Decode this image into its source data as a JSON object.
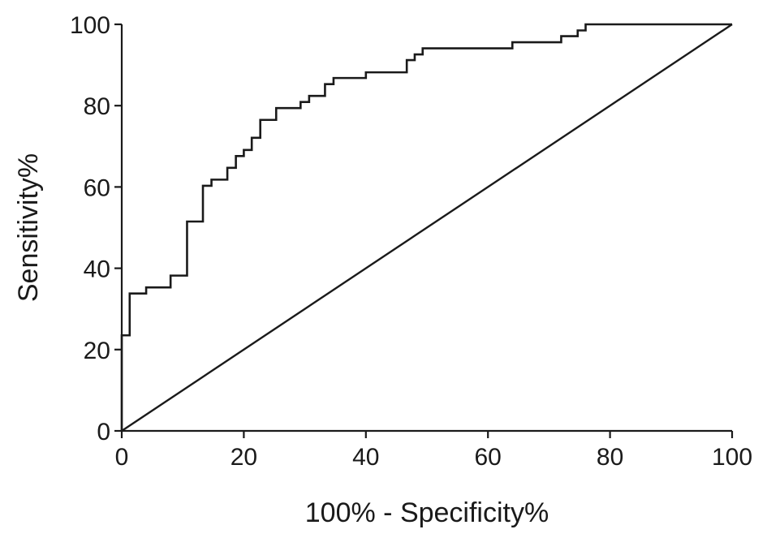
{
  "chart_data": {
    "type": "line",
    "title": "",
    "xlabel": "100% - Specificity%",
    "ylabel": "Sensitivity%",
    "xlim": [
      0,
      100
    ],
    "ylim": [
      0,
      100
    ],
    "xticks": [
      0,
      20,
      40,
      60,
      80,
      100
    ],
    "yticks": [
      0,
      20,
      40,
      60,
      80,
      100
    ],
    "grid": false,
    "legend": "none",
    "series": [
      {
        "kind": "roc-step",
        "color": "#1a1a1a",
        "points": [
          [
            0,
            0
          ],
          [
            0,
            23.5
          ],
          [
            1.3,
            23.5
          ],
          [
            1.3,
            33.8
          ],
          [
            4,
            33.8
          ],
          [
            4,
            35.3
          ],
          [
            8,
            35.3
          ],
          [
            8,
            38.2
          ],
          [
            10.7,
            38.2
          ],
          [
            10.7,
            51.5
          ],
          [
            13.3,
            51.5
          ],
          [
            13.3,
            60.3
          ],
          [
            14.7,
            60.3
          ],
          [
            14.7,
            61.8
          ],
          [
            17.3,
            61.8
          ],
          [
            17.3,
            64.7
          ],
          [
            18.7,
            64.7
          ],
          [
            18.7,
            67.6
          ],
          [
            20,
            67.6
          ],
          [
            20,
            69.1
          ],
          [
            21.3,
            69.1
          ],
          [
            21.3,
            72.1
          ],
          [
            22.7,
            72.1
          ],
          [
            22.7,
            76.5
          ],
          [
            25.3,
            76.5
          ],
          [
            25.3,
            79.4
          ],
          [
            29.3,
            79.4
          ],
          [
            29.3,
            80.9
          ],
          [
            30.7,
            80.9
          ],
          [
            30.7,
            82.4
          ],
          [
            33.3,
            82.4
          ],
          [
            33.3,
            85.3
          ],
          [
            34.7,
            85.3
          ],
          [
            34.7,
            86.8
          ],
          [
            40,
            86.8
          ],
          [
            40,
            88.2
          ],
          [
            46.7,
            88.2
          ],
          [
            46.7,
            91.2
          ],
          [
            48,
            91.2
          ],
          [
            48,
            92.6
          ],
          [
            49.3,
            92.6
          ],
          [
            49.3,
            94.1
          ],
          [
            64,
            94.1
          ],
          [
            64,
            95.6
          ],
          [
            72,
            95.6
          ],
          [
            72,
            97.1
          ],
          [
            74.7,
            97.1
          ],
          [
            74.7,
            98.5
          ],
          [
            76,
            98.5
          ],
          [
            76,
            100
          ],
          [
            100,
            100
          ]
        ]
      },
      {
        "kind": "reference-diagonal",
        "color": "#1a1a1a",
        "points": [
          [
            0,
            0
          ],
          [
            100,
            100
          ]
        ]
      }
    ]
  }
}
